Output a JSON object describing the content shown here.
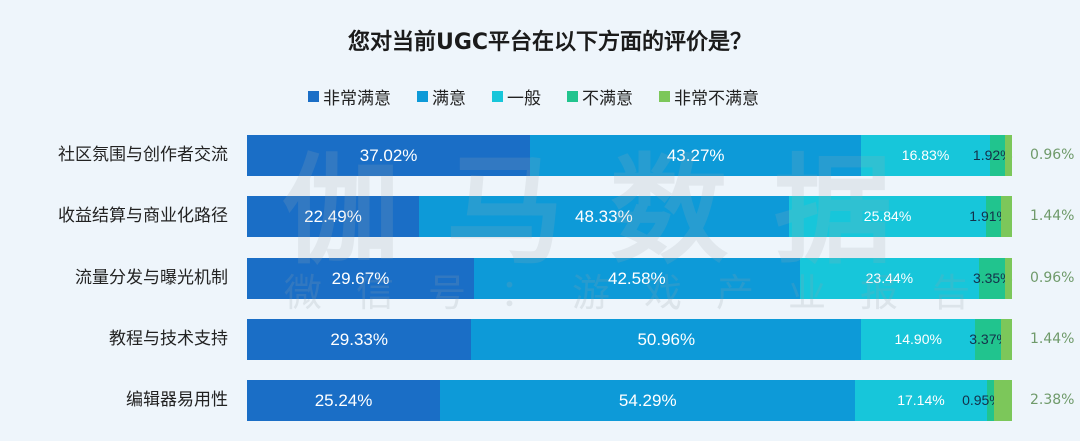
{
  "title": "您对当前UGC平台在以下方面的评价是？",
  "legend": [
    {
      "label": "非常满意",
      "color": "#1a6ec6"
    },
    {
      "label": "满意",
      "color": "#0d9ad8"
    },
    {
      "label": "一般",
      "color": "#17c6da"
    },
    {
      "label": "不满意",
      "color": "#21c48e"
    },
    {
      "label": "非常不满意",
      "color": "#7cc75a"
    }
  ],
  "watermark": {
    "main": "伽马数据",
    "sub": "微信号：游戏产业报告"
  },
  "rows": [
    {
      "label": "社区氛围与创作者交流",
      "v": [
        "37.02%",
        "43.27%",
        "16.83%",
        "1.92%",
        "0.96%"
      ]
    },
    {
      "label": "收益结算与商业化路径",
      "v": [
        "22.49%",
        "48.33%",
        "25.84%",
        "1.91%",
        "1.44%"
      ]
    },
    {
      "label": "流量分发与曝光机制",
      "v": [
        "29.67%",
        "42.58%",
        "23.44%",
        "3.35%",
        "0.96%"
      ]
    },
    {
      "label": "教程与技术支持",
      "v": [
        "29.33%",
        "50.96%",
        "14.90%",
        "3.37%",
        "1.44%"
      ]
    },
    {
      "label": "编辑器易用性",
      "v": [
        "25.24%",
        "54.29%",
        "17.14%",
        "0.95%",
        "2.38%"
      ]
    }
  ],
  "chart_data": {
    "type": "bar",
    "orientation": "horizontal",
    "stacked": true,
    "normalized": true,
    "title": "您对当前UGC平台在以下方面的评价是？",
    "xlabel": "",
    "ylabel": "",
    "xlim": [
      0,
      100
    ],
    "legend_position": "top",
    "grid": false,
    "categories": [
      "社区氛围与创作者交流",
      "收益结算与商业化路径",
      "流量分发与曝光机制",
      "教程与技术支持",
      "编辑器易用性"
    ],
    "series": [
      {
        "name": "非常满意",
        "color": "#1a6ec6",
        "values": [
          37.02,
          22.49,
          29.67,
          29.33,
          25.24
        ]
      },
      {
        "name": "满意",
        "color": "#0d9ad8",
        "values": [
          43.27,
          48.33,
          42.58,
          50.96,
          54.29
        ]
      },
      {
        "name": "一般",
        "color": "#17c6da",
        "values": [
          16.83,
          25.84,
          23.44,
          14.9,
          17.14
        ]
      },
      {
        "name": "不满意",
        "color": "#21c48e",
        "values": [
          1.92,
          1.91,
          3.35,
          3.37,
          0.95
        ]
      },
      {
        "name": "非常不满意",
        "color": "#7cc75a",
        "values": [
          0.96,
          1.44,
          0.96,
          1.44,
          2.38
        ]
      }
    ]
  }
}
